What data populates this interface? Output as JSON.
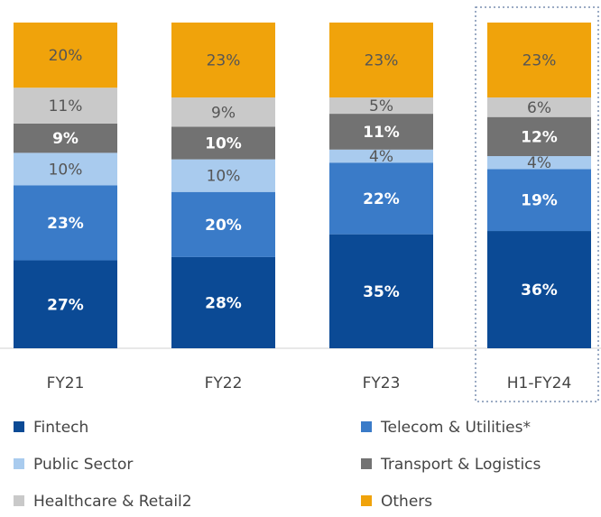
{
  "chart_data": {
    "type": "stacked_bar",
    "categories": [
      "FY21",
      "FY22",
      "FY23",
      "H1-FY24"
    ],
    "series": [
      {
        "name": "Fintech",
        "color": "#0b4a95",
        "values": [
          27,
          28,
          35,
          36
        ],
        "value_labels": [
          "27%",
          "28%",
          "35%",
          "36%"
        ]
      },
      {
        "name": "Telecom & Utilities*",
        "color": "#3a7bc8",
        "values": [
          23,
          20,
          22,
          19
        ],
        "value_labels": [
          "23%",
          "20%",
          "22%",
          "19%"
        ]
      },
      {
        "name": "Public Sector",
        "color": "#a9cbee",
        "values": [
          10,
          10,
          4,
          4
        ],
        "value_labels": [
          "10%",
          "10%",
          "4%",
          "4%"
        ]
      },
      {
        "name": "Transport & Logistics",
        "color": "#727272",
        "values": [
          9,
          10,
          11,
          12
        ],
        "value_labels": [
          "9%",
          "10%",
          "11%",
          "12%"
        ]
      },
      {
        "name": "Healthcare & Retail2",
        "color": "#c9c9c9",
        "values": [
          11,
          9,
          5,
          6
        ],
        "value_labels": [
          "11%",
          "9%",
          "5%",
          "6%"
        ]
      },
      {
        "name": "Others",
        "color": "#f0a30b",
        "values": [
          20,
          23,
          23,
          23
        ],
        "value_labels": [
          "20%",
          "23%",
          "23%",
          "23%"
        ]
      }
    ]
  }
}
